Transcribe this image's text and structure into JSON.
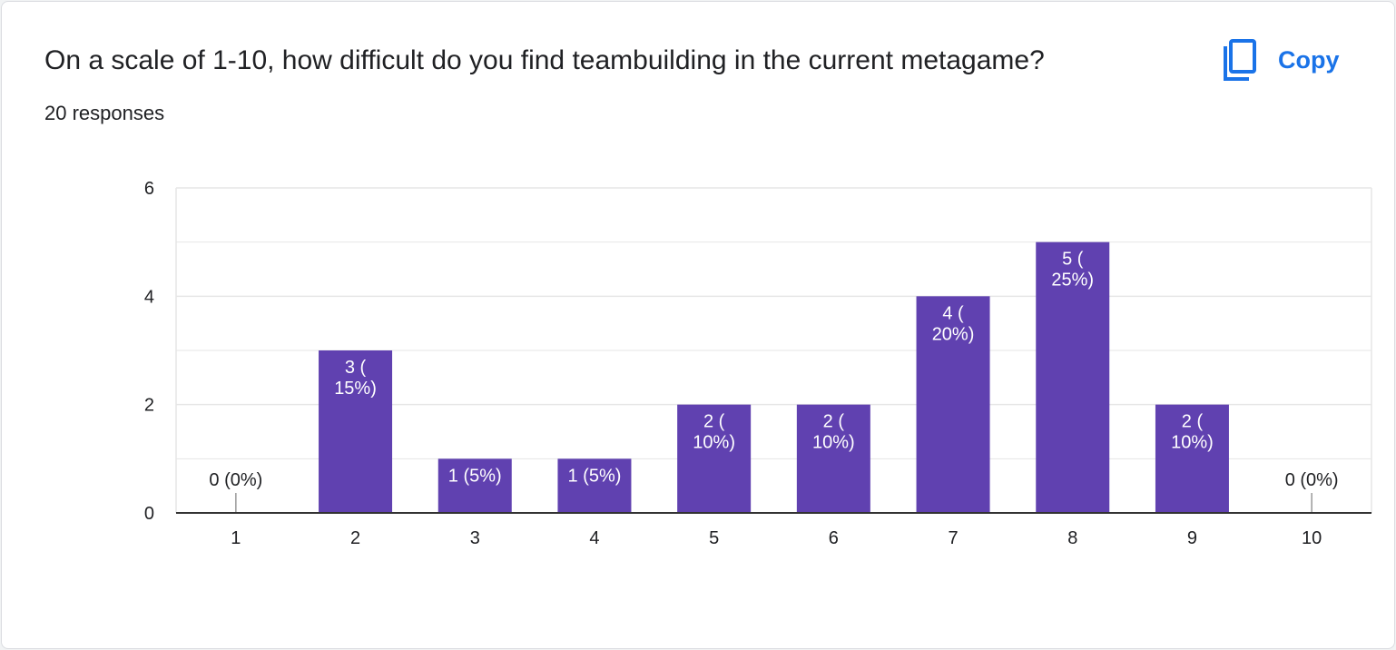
{
  "question": {
    "title": "On a scale of 1-10, how difficult do you find teambuilding in the current metagame?",
    "responses": "20 responses"
  },
  "copy_button": {
    "label": "Copy",
    "icon": "copy-icon"
  },
  "colors": {
    "bar": "#6041b0",
    "accent": "#1a73e8",
    "grid": "#e6e6e6",
    "axis": "#333333"
  },
  "chart_data": {
    "type": "bar",
    "categories": [
      "1",
      "2",
      "3",
      "4",
      "5",
      "6",
      "7",
      "8",
      "9",
      "10"
    ],
    "values": [
      0,
      3,
      1,
      1,
      2,
      2,
      4,
      5,
      2,
      0
    ],
    "data_labels": [
      [
        "0 (0%)"
      ],
      [
        "3 (",
        "15%)"
      ],
      [
        "1 (5%)"
      ],
      [
        "1 (5%)"
      ],
      [
        "2 (",
        "10%)"
      ],
      [
        "2 (",
        "10%)"
      ],
      [
        "4 (",
        "20%)"
      ],
      [
        "5 (",
        "25%)"
      ],
      [
        "2 (",
        "10%)"
      ],
      [
        "0 (0%)"
      ]
    ],
    "y_ticks": [
      "0",
      "2",
      "4",
      "6"
    ],
    "ylim": [
      0,
      6
    ],
    "grid": true,
    "title": "",
    "xlabel": "",
    "ylabel": ""
  }
}
